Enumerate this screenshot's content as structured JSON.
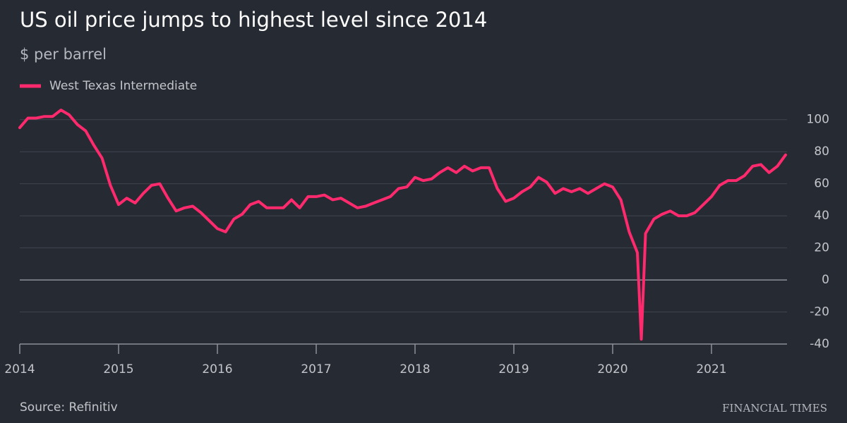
{
  "chart_data": {
    "type": "line",
    "title": "US oil price jumps to highest level since 2014",
    "subtitle": "$ per barrel",
    "source": "Source: Refinitiv",
    "brand": "FINANCIAL TIMES",
    "x": [
      2014,
      2014.083,
      2014.167,
      2014.25,
      2014.333,
      2014.417,
      2014.5,
      2014.583,
      2014.667,
      2014.75,
      2014.833,
      2014.917,
      2015,
      2015.083,
      2015.167,
      2015.25,
      2015.333,
      2015.417,
      2015.5,
      2015.583,
      2015.667,
      2015.75,
      2015.833,
      2015.917,
      2016,
      2016.083,
      2016.167,
      2016.25,
      2016.333,
      2016.417,
      2016.5,
      2016.583,
      2016.667,
      2016.75,
      2016.833,
      2016.917,
      2017,
      2017.083,
      2017.167,
      2017.25,
      2017.333,
      2017.417,
      2017.5,
      2017.583,
      2017.667,
      2017.75,
      2017.833,
      2017.917,
      2018,
      2018.083,
      2018.167,
      2018.25,
      2018.333,
      2018.417,
      2018.5,
      2018.583,
      2018.667,
      2018.75,
      2018.833,
      2018.917,
      2019,
      2019.083,
      2019.167,
      2019.25,
      2019.333,
      2019.417,
      2019.5,
      2019.583,
      2019.667,
      2019.75,
      2019.833,
      2019.917,
      2020,
      2020.083,
      2020.167,
      2020.25,
      2020.29,
      2020.333,
      2020.417,
      2020.5,
      2020.583,
      2020.667,
      2020.75,
      2020.833,
      2020.917,
      2021,
      2021.083,
      2021.167,
      2021.25,
      2021.333,
      2021.417,
      2021.5,
      2021.583,
      2021.667,
      2021.75
    ],
    "series": [
      {
        "name": "West Texas Intermediate",
        "color": "#ff2a6d",
        "values": [
          95,
          101,
          101,
          102,
          102,
          106,
          103,
          97,
          93,
          84,
          76,
          59,
          47,
          51,
          48,
          54,
          59,
          60,
          51,
          43,
          45,
          46,
          42,
          37,
          32,
          30,
          38,
          41,
          47,
          49,
          45,
          45,
          45,
          50,
          45,
          52,
          52,
          53,
          50,
          51,
          48,
          45,
          46,
          48,
          50,
          52,
          57,
          58,
          64,
          62,
          63,
          67,
          70,
          67,
          71,
          68,
          70,
          70,
          57,
          49,
          51,
          55,
          58,
          64,
          61,
          54,
          57,
          55,
          57,
          54,
          57,
          60,
          58,
          50,
          30,
          17,
          -37,
          29,
          38,
          41,
          43,
          40,
          40,
          42,
          47,
          52,
          59,
          62,
          62,
          65,
          71,
          72,
          67,
          71,
          78
        ]
      }
    ],
    "xlim": [
      2014,
      2021.8
    ],
    "xticks": [
      2014,
      2015,
      2016,
      2017,
      2018,
      2019,
      2020,
      2021
    ],
    "ylim": [
      -40,
      110
    ],
    "yticks": [
      -40,
      -20,
      0,
      20,
      40,
      60,
      80,
      100
    ],
    "grid": true
  }
}
